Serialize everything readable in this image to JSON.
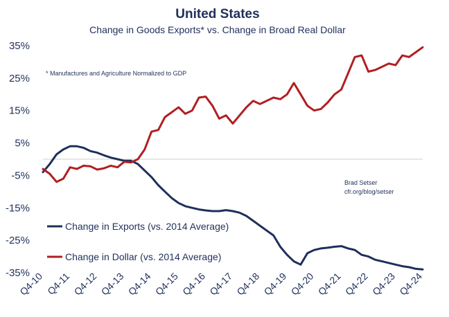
{
  "chart_data": {
    "type": "line",
    "title": "United States",
    "subtitle": "Change in Goods Exports* vs. Change in Broad Real Dollar",
    "annotation": "* Manufactures and Agriculture Normalized to GDP",
    "credit": [
      "Brad Setser",
      "cfr.org/blog/setser"
    ],
    "xlabel": "",
    "ylabel": "",
    "ylim": [
      -37,
      37
    ],
    "yticks": [
      35,
      25,
      15,
      5,
      -5,
      -15,
      -25,
      -35
    ],
    "ytick_labels": [
      "35%",
      "25%",
      "15%",
      "5%",
      "-5%",
      "-15%",
      "-25%",
      "-35%"
    ],
    "xlim": [
      2010.75,
      2024.75
    ],
    "x_tick_positions": [
      2010.75,
      2011.75,
      2012.75,
      2013.75,
      2014.75,
      2015.75,
      2016.75,
      2017.75,
      2018.75,
      2019.75,
      2020.75,
      2021.75,
      2022.75,
      2023.75,
      2024.75
    ],
    "x_tick_labels": [
      "Q4-10",
      "Q4-11",
      "Q4-12",
      "Q4-13",
      "Q4-14",
      "Q4-15",
      "Q4-16",
      "Q4-17",
      "Q4-18",
      "Q4-19",
      "Q4-20",
      "Q4-21",
      "Q4-22",
      "Q4-23",
      "Q4-24"
    ],
    "zero_line": true,
    "legend_position": "lower-left",
    "series": [
      {
        "name": "Change in Exports (vs. 2014 Average)",
        "color": "#1f2f5a",
        "x": [
          2010.75,
          2011.0,
          2011.25,
          2011.5,
          2011.75,
          2012.0,
          2012.25,
          2012.5,
          2012.75,
          2013.0,
          2013.25,
          2013.5,
          2013.75,
          2014.0,
          2014.25,
          2014.5,
          2014.75,
          2015.0,
          2015.25,
          2015.5,
          2015.75,
          2016.0,
          2016.25,
          2016.5,
          2016.75,
          2017.0,
          2017.25,
          2017.5,
          2017.75,
          2018.0,
          2018.25,
          2018.5,
          2018.75,
          2019.0,
          2019.25,
          2019.5,
          2019.75,
          2020.0,
          2020.25,
          2020.5,
          2020.75,
          2021.0,
          2021.25,
          2021.5,
          2021.75,
          2022.0,
          2022.25,
          2022.5,
          2022.75,
          2023.0,
          2023.25,
          2023.5,
          2023.75,
          2024.0,
          2024.25,
          2024.5,
          2024.75
        ],
        "values": [
          -4.0,
          -1.5,
          1.5,
          3.0,
          4.0,
          4.0,
          3.5,
          2.5,
          2.0,
          1.2,
          0.5,
          0.0,
          -0.5,
          -0.5,
          -1.5,
          -3.5,
          -5.5,
          -8.0,
          -10.0,
          -12.0,
          -13.5,
          -14.5,
          -15.0,
          -15.5,
          -15.8,
          -16.0,
          -16.0,
          -15.7,
          -16.0,
          -16.5,
          -17.5,
          -19.0,
          -20.5,
          -22.0,
          -23.5,
          -27.0,
          -29.5,
          -31.5,
          -32.5,
          -29.0,
          -28.0,
          -27.5,
          -27.3,
          -27.0,
          -26.8,
          -27.5,
          -28.0,
          -29.5,
          -30.0,
          -31.0,
          -31.5,
          -32.0,
          -32.5,
          -33.0,
          -33.3,
          -33.8,
          -34.0
        ]
      },
      {
        "name": "Change in Dollar (vs. 2014 Average)",
        "color": "#b11e22",
        "x": [
          2010.75,
          2011.0,
          2011.25,
          2011.5,
          2011.75,
          2012.0,
          2012.25,
          2012.5,
          2012.75,
          2013.0,
          2013.25,
          2013.5,
          2013.75,
          2014.0,
          2014.25,
          2014.5,
          2014.75,
          2015.0,
          2015.25,
          2015.5,
          2015.75,
          2016.0,
          2016.25,
          2016.5,
          2016.75,
          2017.0,
          2017.25,
          2017.5,
          2017.75,
          2018.0,
          2018.25,
          2018.5,
          2018.75,
          2019.0,
          2019.25,
          2019.5,
          2019.75,
          2020.0,
          2020.25,
          2020.5,
          2020.75,
          2021.0,
          2021.25,
          2021.5,
          2021.75,
          2022.0,
          2022.25,
          2022.5,
          2022.75,
          2023.0,
          2023.25,
          2023.5,
          2023.75,
          2024.0,
          2024.25,
          2024.5,
          2024.75
        ],
        "values": [
          -3.0,
          -4.5,
          -7.0,
          -6.0,
          -2.5,
          -3.0,
          -2.0,
          -2.2,
          -3.2,
          -2.8,
          -2.0,
          -2.5,
          -0.8,
          -1.0,
          0.0,
          3.0,
          8.5,
          9.0,
          13.0,
          14.5,
          16.0,
          14.0,
          15.0,
          19.0,
          19.3,
          16.5,
          12.5,
          13.5,
          11.0,
          13.5,
          16.0,
          18.0,
          17.0,
          18.0,
          19.0,
          18.5,
          20.0,
          23.5,
          20.0,
          16.5,
          15.0,
          15.5,
          17.5,
          20.0,
          21.5,
          26.5,
          31.5,
          32.0,
          27.0,
          27.5,
          28.5,
          29.5,
          29.0,
          32.0,
          31.5,
          33.0,
          34.5
        ]
      }
    ]
  }
}
